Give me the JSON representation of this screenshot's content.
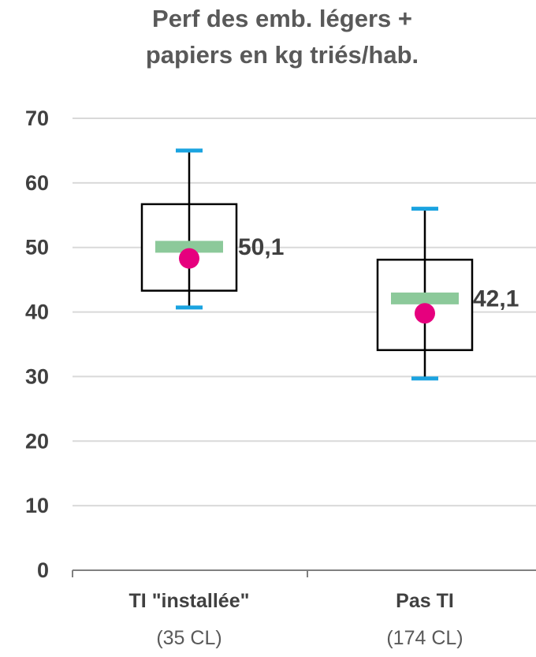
{
  "chart_data": {
    "type": "boxplot",
    "title_lines": [
      "Perf des emb. légers +",
      "papiers en kg triés/hab."
    ],
    "ylim": [
      0,
      70
    ],
    "yticks": [
      0,
      10,
      20,
      30,
      40,
      50,
      60,
      70
    ],
    "grid": true,
    "categories": [
      {
        "label": "TI \"installée\"",
        "sublabel": "(35 CL)"
      },
      {
        "label": "Pas TI",
        "sublabel": "(174 CL)"
      }
    ],
    "series": [
      {
        "min": 40.7,
        "q1": 43.3,
        "median": 50.1,
        "q3": 56.7,
        "max": 65,
        "mean": 48.3,
        "label": "50,1"
      },
      {
        "min": 29.7,
        "q1": 34.1,
        "median": 42.1,
        "q3": 48.1,
        "max": 56,
        "mean": 39.8,
        "label": "42,1"
      }
    ],
    "colors": {
      "box": "#000000",
      "whisker_cap": "#1aa3e0",
      "median": "#8cc99a",
      "mean": "#e6007e",
      "grid": "#d9d9d9",
      "axis": "#808080"
    }
  }
}
